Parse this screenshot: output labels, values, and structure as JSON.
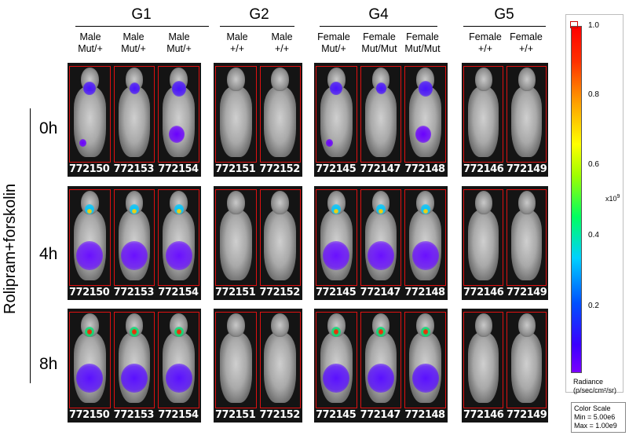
{
  "groups": [
    {
      "title": "G1",
      "subjects": [
        "Male\nMut/+",
        "Male\nMut/+",
        "Male\nMut/+"
      ],
      "ids": [
        "772150",
        "772153",
        "772154"
      ]
    },
    {
      "title": "G2",
      "subjects": [
        "Male\n+/+",
        "Male\n+/+"
      ],
      "ids": [
        "772151",
        "772152"
      ]
    },
    {
      "title": "G4",
      "subjects": [
        "Female\nMut/+",
        "Female\nMut/Mut",
        "Female\nMut/Mut"
      ],
      "ids": [
        "772145",
        "772147",
        "772148"
      ]
    },
    {
      "title": "G5",
      "subjects": [
        "Female\n+/+",
        "Female\n+/+"
      ],
      "ids": [
        "772146",
        "772149"
      ]
    }
  ],
  "timepoints": [
    "0h",
    "4h",
    "8h"
  ],
  "treatment_label": "Rolipram+forskolin",
  "colorbar": {
    "ticks": [
      "1.0",
      "0.8",
      "0.6",
      "0.4",
      "0.2"
    ],
    "exponent": "x10",
    "exponent_power": "9",
    "radiance_label": "Radiance\n(p/sec/cm²/sr)",
    "scale_title": "Color Scale",
    "scale_min": "Min = 5.00e6",
    "scale_max": "Max = 1.00e9"
  }
}
